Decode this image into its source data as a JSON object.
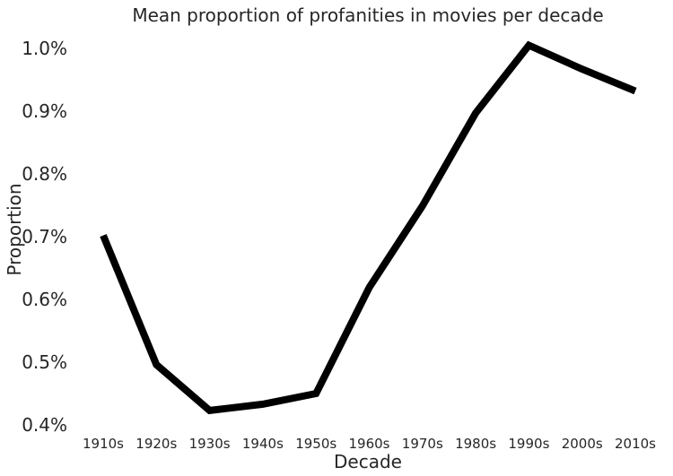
{
  "chart_data": {
    "type": "line",
    "title": "Mean proportion of profanities in movies per decade",
    "xlabel": "Decade",
    "ylabel": "Proportion",
    "categories": [
      "1910s",
      "1920s",
      "1930s",
      "1940s",
      "1950s",
      "1960s",
      "1970s",
      "1980s",
      "1990s",
      "2000s",
      "2010s"
    ],
    "series": [
      {
        "values": [
          0.702,
          0.496,
          0.423,
          0.433,
          0.45,
          0.619,
          0.749,
          0.897,
          1.005,
          0.967,
          0.932
        ]
      }
    ],
    "yticks": [
      "0.4%",
      "0.5%",
      "0.6%",
      "0.7%",
      "0.8%",
      "0.9%",
      "1.0%"
    ],
    "ytick_values": [
      0.4,
      0.5,
      0.6,
      0.7,
      0.8,
      0.9,
      1.0
    ],
    "ylim": [
      0.4,
      1.0
    ],
    "grid": false,
    "legend": "none",
    "line_color": "#000000"
  }
}
